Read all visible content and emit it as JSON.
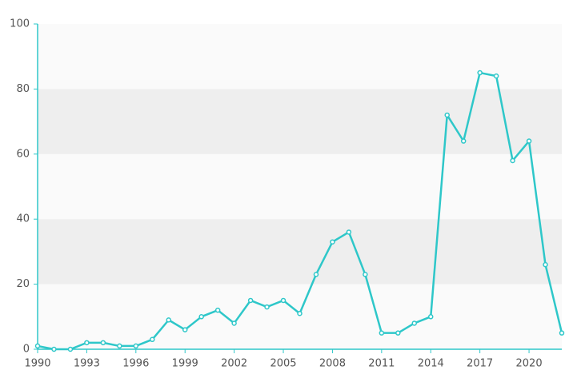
{
  "chart_data": {
    "type": "line",
    "x": [
      1990,
      1991,
      1992,
      1993,
      1994,
      1995,
      1996,
      1997,
      1998,
      1999,
      2000,
      2001,
      2002,
      2003,
      2004,
      2005,
      2006,
      2007,
      2008,
      2009,
      2010,
      2011,
      2012,
      2013,
      2014,
      2015,
      2016,
      2017,
      2018,
      2019,
      2020,
      2021,
      2022
    ],
    "values": [
      1,
      0,
      0,
      2,
      2,
      1,
      1,
      3,
      9,
      6,
      10,
      12,
      8,
      15,
      13,
      15,
      11,
      23,
      33,
      36,
      23,
      5,
      5,
      8,
      10,
      72,
      64,
      85,
      84,
      58,
      64,
      26,
      5
    ],
    "color": "#2ec7c9",
    "xlim": [
      1990,
      2022
    ],
    "xticks": [
      1990,
      1993,
      1996,
      1999,
      2002,
      2005,
      2008,
      2011,
      2014,
      2017,
      2020
    ],
    "ylim": [
      0,
      100
    ],
    "yticks": [
      0,
      20,
      40,
      60,
      80,
      100
    ],
    "grid": "bands"
  }
}
